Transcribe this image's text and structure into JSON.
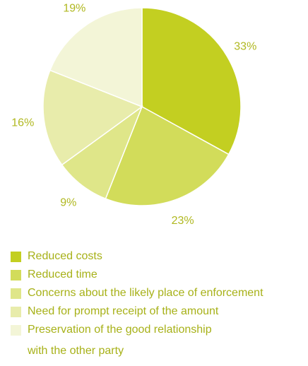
{
  "chart_data": {
    "type": "pie",
    "categories": [
      "Reduced costs",
      "Reduced time",
      "Concerns about the likely place of enforcement",
      "Need for prompt receipt of the amount",
      "Preservation of the good relationship with the other party"
    ],
    "values": [
      33,
      23,
      9,
      16,
      19
    ],
    "value_labels": [
      "33%",
      "23%",
      "9%",
      "16%",
      "19%"
    ],
    "colors": [
      "#c3cf21",
      "#d2dc5a",
      "#dfe689",
      "#e8ecab",
      "#f3f5d7"
    ],
    "legend_placement": "bottom",
    "start_angle": "12 o'clock, clockwise"
  },
  "legend": {
    "items": [
      {
        "label": "Reduced costs",
        "color": "#c3cf21"
      },
      {
        "label": "Reduced time",
        "color": "#d2dc5a"
      },
      {
        "label": "Concerns about the likely place of enforcement",
        "color": "#dfe689"
      },
      {
        "label": "Need for prompt receipt of the amount",
        "color": "#e8ecab"
      },
      {
        "label": "Preservation of the good relationship\nwith the other party",
        "color": "#f3f5d7"
      }
    ]
  }
}
